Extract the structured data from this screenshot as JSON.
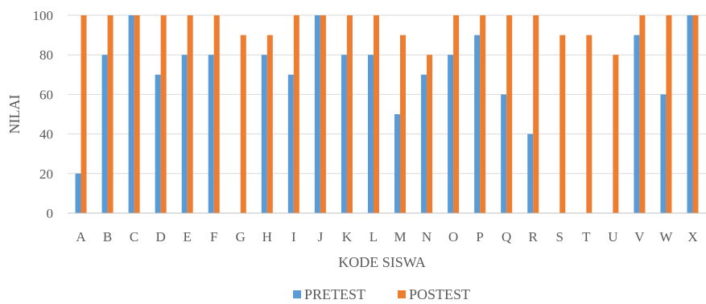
{
  "chart_data": {
    "type": "bar",
    "categories": [
      "A",
      "B",
      "C",
      "D",
      "E",
      "F",
      "G",
      "H",
      "I",
      "J",
      "K",
      "L",
      "M",
      "N",
      "O",
      "P",
      "Q",
      "R",
      "S",
      "T",
      "U",
      "V",
      "W",
      "X"
    ],
    "series": [
      {
        "name": "PRETEST",
        "color": "#5B9BD5",
        "values": [
          20,
          80,
          100,
          70,
          80,
          80,
          0,
          80,
          70,
          100,
          80,
          80,
          50,
          70,
          80,
          90,
          60,
          40,
          0,
          0,
          0,
          90,
          60,
          100
        ]
      },
      {
        "name": "POSTEST",
        "color": "#ED7D31",
        "values": [
          100,
          100,
          100,
          100,
          100,
          100,
          90,
          90,
          100,
          100,
          100,
          100,
          90,
          80,
          100,
          100,
          100,
          100,
          90,
          90,
          80,
          100,
          100,
          100
        ]
      }
    ],
    "xlabel": "KODE SISWA",
    "ylabel": "NILAI",
    "ylim": [
      0,
      100
    ],
    "yticks": [
      0,
      20,
      40,
      60,
      80,
      100
    ],
    "grid": true,
    "legend": "bottom"
  }
}
